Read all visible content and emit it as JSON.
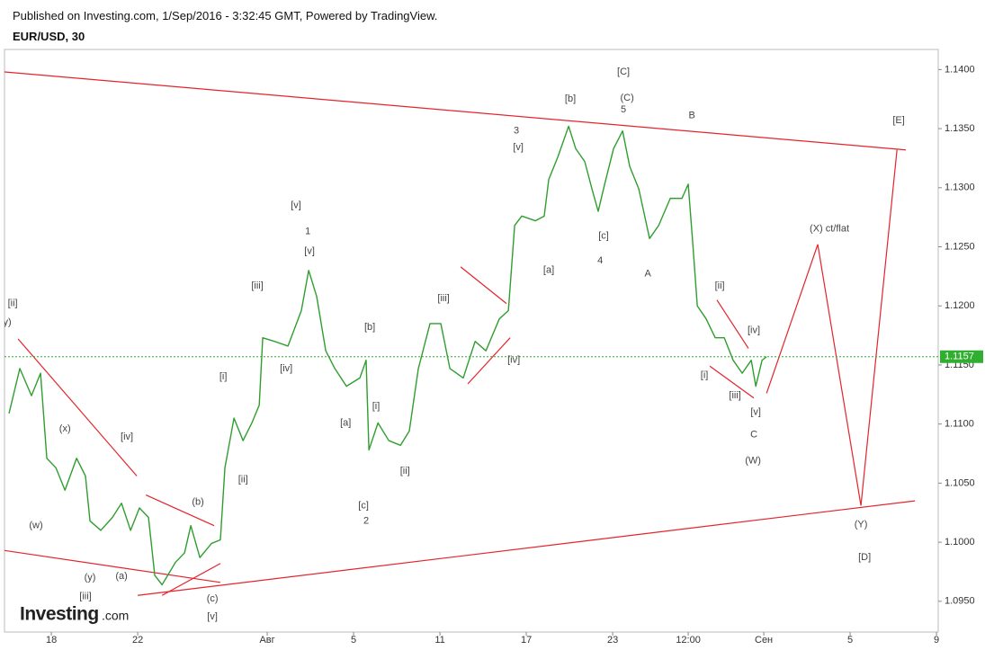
{
  "header": {
    "published": "Published on Investing.com, 1/Sep/2016 - 3:32:45 GMT, Powered by TradingView.",
    "symbol": "EUR/USD, 30"
  },
  "logo": {
    "brand": "Investing",
    "suffix": ".com"
  },
  "chart_data": {
    "type": "line",
    "color": "#2f9e2f",
    "grid": false,
    "x": [
      -1.96,
      -1.46,
      -0.92,
      -0.5,
      -0.21,
      0.21,
      0.63,
      1.17,
      1.58,
      1.79,
      2.29,
      2.83,
      3.25,
      3.67,
      4.08,
      4.5,
      4.79,
      5.13,
      5.75,
      6.17,
      6.46,
      6.88,
      7.42,
      7.83,
      8.04,
      8.46,
      8.88,
      9.29,
      9.63,
      9.79,
      10.33,
      10.96,
      11.58,
      11.92,
      12.29,
      12.71,
      13.13,
      13.67,
      14.29,
      14.58,
      14.71,
      15.13,
      15.63,
      16.17,
      16.58,
      17,
      17.54,
      18.04,
      18.46,
      19.08,
      19.63,
      20.13,
      20.75,
      21.17,
      21.46,
      21.79,
      22.42,
      22.83,
      23.04,
      23.46,
      23.96,
      24.29,
      24.71,
      25.04,
      25.33,
      25.63,
      26.04,
      26.46,
      26.79,
      27.21,
      27.71,
      28.13,
      28.67,
      29.21,
      29.5,
      29.71,
      29.92,
      30.33,
      30.75,
      31.17,
      31.58,
      32,
      32.42,
      32.63,
      32.92,
      33.13
    ],
    "values": [
      1.1109,
      1.1147,
      1.1124,
      1.1143,
      1.1071,
      1.1063,
      1.1044,
      1.1071,
      1.1056,
      1.1018,
      1.101,
      1.1021,
      1.1033,
      1.101,
      1.1029,
      1.1021,
      1.0972,
      1.0964,
      1.0983,
      1.0991,
      1.1014,
      1.0987,
      1.0999,
      1.1002,
      1.1063,
      1.1105,
      1.1086,
      1.1101,
      1.1116,
      1.1173,
      1.117,
      1.1166,
      1.1196,
      1.123,
      1.1208,
      1.1162,
      1.1147,
      1.1132,
      1.1139,
      1.1154,
      1.1078,
      1.1101,
      1.1086,
      1.1082,
      1.1094,
      1.1147,
      1.1185,
      1.1185,
      1.1147,
      1.1139,
      1.117,
      1.1162,
      1.1189,
      1.1196,
      1.1268,
      1.1276,
      1.1272,
      1.1276,
      1.1307,
      1.1326,
      1.1352,
      1.1333,
      1.1322,
      1.1299,
      1.128,
      1.1303,
      1.1333,
      1.1348,
      1.1318,
      1.1299,
      1.1257,
      1.1268,
      1.1291,
      1.1291,
      1.1303,
      1.1253,
      1.12,
      1.1189,
      1.1173,
      1.1173,
      1.1154,
      1.1143,
      1.1154,
      1.1132,
      1.1154,
      1.1157
    ],
    "xlim": [
      -2.17,
      41.08
    ],
    "ylim": [
      1.0924,
      1.1417
    ],
    "xticks": [
      {
        "value": 0,
        "label": "18"
      },
      {
        "value": 4,
        "label": "22"
      },
      {
        "value": 10,
        "label": "Авг"
      },
      {
        "value": 14,
        "label": "5"
      },
      {
        "value": 18,
        "label": "11"
      },
      {
        "value": 22,
        "label": "17"
      },
      {
        "value": 26,
        "label": "23"
      },
      {
        "value": 29.5,
        "label": "12:00"
      },
      {
        "value": 33,
        "label": "Сен"
      },
      {
        "value": 37,
        "label": "5"
      },
      {
        "value": 41,
        "label": "9"
      }
    ],
    "yticks": [
      {
        "value": 1.095,
        "label": "1.0950"
      },
      {
        "value": 1.1,
        "label": "1.1000"
      },
      {
        "value": 1.105,
        "label": "1.1050"
      },
      {
        "value": 1.11,
        "label": "1.1100"
      },
      {
        "value": 1.115,
        "label": "1.1150"
      },
      {
        "value": 1.12,
        "label": "1.1200"
      },
      {
        "value": 1.125,
        "label": "1.1250"
      },
      {
        "value": 1.13,
        "label": "1.1300"
      },
      {
        "value": 1.135,
        "label": "1.1350"
      },
      {
        "value": 1.14,
        "label": "1.1400"
      }
    ],
    "last_price": {
      "value": 1.1157,
      "label": "1.1157",
      "color": "#2fae2f"
    },
    "line_color": "#e3242b",
    "trend_lines": [
      {
        "x": [
          -2.17,
          39.58
        ],
        "y": [
          1.1398,
          1.1332
        ]
      },
      {
        "x": [
          4,
          40
        ],
        "y": [
          1.0955,
          1.1035
        ]
      },
      {
        "x": [
          -2.17,
          7.83
        ],
        "y": [
          1.0993,
          1.0966
        ]
      },
      {
        "x": [
          -1.54,
          3.96
        ],
        "y": [
          1.1172,
          1.1056
        ]
      },
      {
        "x": [
          4.38,
          7.54
        ],
        "y": [
          1.104,
          1.1014
        ]
      },
      {
        "x": [
          5.13,
          7.83
        ],
        "y": [
          1.0955,
          1.0982
        ]
      },
      {
        "x": [
          18.96,
          21.08
        ],
        "y": [
          1.1233,
          1.1202
        ]
      },
      {
        "x": [
          19.29,
          21.25
        ],
        "y": [
          1.1134,
          1.1173
        ]
      },
      {
        "x": [
          30.83,
          32.29
        ],
        "y": [
          1.1205,
          1.1164
        ]
      },
      {
        "x": [
          30.5,
          32.54
        ],
        "y": [
          1.1149,
          1.1122
        ]
      },
      {
        "x": [
          33.13,
          35.5,
          37.5,
          39.17
        ],
        "y": [
          1.1126,
          1.1252,
          1.1031,
          1.1332
        ]
      }
    ],
    "annotations": [
      {
        "text": "[ii]",
        "x": -1.79,
        "y": 1.1202
      },
      {
        "text": "y)",
        "x": -2.04,
        "y": 1.1186
      },
      {
        "text": "(x)",
        "x": 0.63,
        "y": 1.1096
      },
      {
        "text": "(w)",
        "x": -0.71,
        "y": 1.1014
      },
      {
        "text": "(y)",
        "x": 1.79,
        "y": 1.097
      },
      {
        "text": "[iii]",
        "x": 1.58,
        "y": 1.0954
      },
      {
        "text": "(a)",
        "x": 3.25,
        "y": 1.0971
      },
      {
        "text": "[iv]",
        "x": 3.5,
        "y": 1.1089
      },
      {
        "text": "(b)",
        "x": 6.79,
        "y": 1.1034
      },
      {
        "text": "(c)",
        "x": 7.46,
        "y": 1.0952
      },
      {
        "text": "[v]",
        "x": 7.46,
        "y": 1.0937
      },
      {
        "text": "[i]",
        "x": 7.96,
        "y": 1.114
      },
      {
        "text": "[ii]",
        "x": 8.88,
        "y": 1.1053
      },
      {
        "text": "[iii]",
        "x": 9.54,
        "y": 1.1217
      },
      {
        "text": "[iv]",
        "x": 10.88,
        "y": 1.1147
      },
      {
        "text": "[v]",
        "x": 11.33,
        "y": 1.1285
      },
      {
        "text": "1",
        "x": 11.88,
        "y": 1.1263
      },
      {
        "text": "[v]",
        "x": 11.96,
        "y": 1.1246
      },
      {
        "text": "[a]",
        "x": 13.63,
        "y": 1.1101
      },
      {
        "text": "[b]",
        "x": 14.75,
        "y": 1.1182
      },
      {
        "text": "[i]",
        "x": 15.04,
        "y": 1.1115
      },
      {
        "text": "[ii]",
        "x": 16.38,
        "y": 1.106
      },
      {
        "text": "[c]",
        "x": 14.46,
        "y": 1.1031
      },
      {
        "text": "2",
        "x": 14.58,
        "y": 1.1018
      },
      {
        "text": "[iii]",
        "x": 18.17,
        "y": 1.1206
      },
      {
        "text": "[iv]",
        "x": 21.42,
        "y": 1.1154
      },
      {
        "text": "3",
        "x": 21.54,
        "y": 1.1348
      },
      {
        "text": "[v]",
        "x": 21.63,
        "y": 1.1334
      },
      {
        "text": "[a]",
        "x": 23.04,
        "y": 1.123
      },
      {
        "text": "[b]",
        "x": 24.04,
        "y": 1.1375
      },
      {
        "text": "[c]",
        "x": 25.58,
        "y": 1.1259
      },
      {
        "text": "4",
        "x": 25.42,
        "y": 1.1238
      },
      {
        "text": "[C]",
        "x": 26.5,
        "y": 1.1398
      },
      {
        "text": "(C)",
        "x": 26.67,
        "y": 1.1376
      },
      {
        "text": "5",
        "x": 26.5,
        "y": 1.1366
      },
      {
        "text": "B",
        "x": 29.67,
        "y": 1.1361
      },
      {
        "text": "A",
        "x": 27.63,
        "y": 1.1227
      },
      {
        "text": "[ii]",
        "x": 30.96,
        "y": 1.1217
      },
      {
        "text": "[iv]",
        "x": 32.54,
        "y": 1.1179
      },
      {
        "text": "[i]",
        "x": 30.25,
        "y": 1.1141
      },
      {
        "text": "[iii]",
        "x": 31.67,
        "y": 1.1124
      },
      {
        "text": "[v]",
        "x": 32.63,
        "y": 1.111
      },
      {
        "text": "C",
        "x": 32.54,
        "y": 1.1091
      },
      {
        "text": "(W)",
        "x": 32.5,
        "y": 1.1069
      },
      {
        "text": "(X) ct/flat",
        "x": 36.04,
        "y": 1.1265
      },
      {
        "text": "[E]",
        "x": 39.25,
        "y": 1.1357
      },
      {
        "text": "(Y)",
        "x": 37.5,
        "y": 1.1015
      },
      {
        "text": "[D]",
        "x": 37.67,
        "y": 1.0987
      }
    ]
  }
}
